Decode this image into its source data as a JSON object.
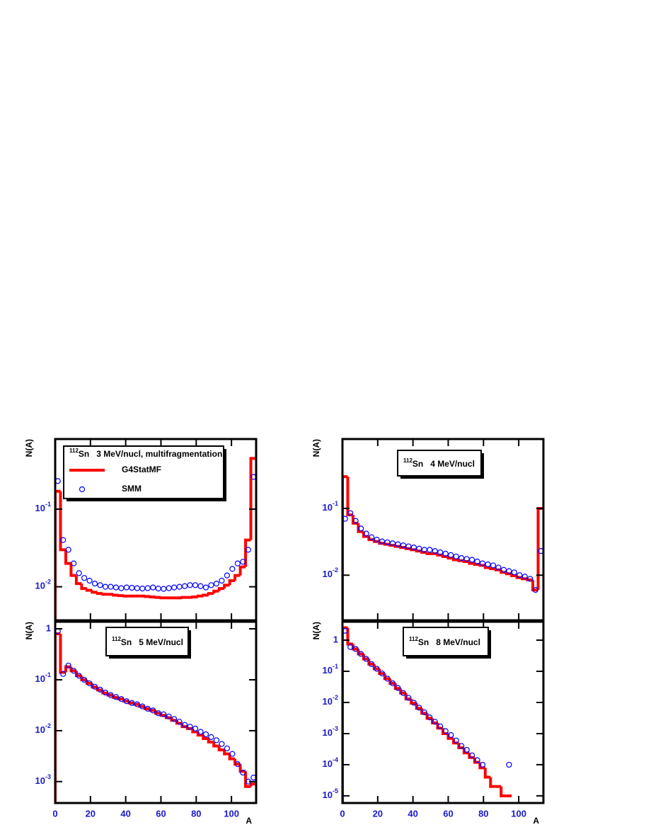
{
  "chart_data": [
    {
      "type": "histogram",
      "title": {
        "mass": "112",
        "element": "Sn",
        "text": "   3 MeV/nucl, multifragmentation"
      },
      "ylabel": "N(A)",
      "xlim": [
        0,
        114
      ],
      "xticks": [
        0,
        20,
        40,
        60,
        80,
        100
      ],
      "log_y": true,
      "ylim": [
        0.0037,
        0.8
      ],
      "yticks": [
        {
          "value": 0.1,
          "base": "10",
          "exponent": "-1"
        },
        {
          "value": 0.01,
          "base": "10",
          "exponent": "-2"
        }
      ],
      "bins": [
        0,
        3,
        6,
        9,
        12,
        15,
        18,
        21,
        24,
        27,
        30,
        33,
        36,
        39,
        42,
        45,
        48,
        51,
        54,
        57,
        60,
        63,
        66,
        69,
        72,
        75,
        78,
        81,
        84,
        87,
        90,
        93,
        96,
        99,
        102,
        105,
        108,
        111,
        114
      ],
      "series": [
        {
          "name": "G4StatMF",
          "style": "step",
          "color": "#ff0000",
          "values": [
            0.17,
            0.03,
            0.02,
            0.014,
            0.011,
            0.0095,
            0.009,
            0.0085,
            0.0082,
            0.008,
            0.008,
            0.0078,
            0.0077,
            0.0076,
            0.0076,
            0.0076,
            0.0076,
            0.0075,
            0.0074,
            0.0073,
            0.0072,
            0.0072,
            0.0072,
            0.0072,
            0.0073,
            0.0073,
            0.0074,
            0.0076,
            0.0078,
            0.0082,
            0.0088,
            0.0095,
            0.0105,
            0.012,
            0.014,
            0.018,
            0.04,
            0.45
          ]
        },
        {
          "name": "SMM",
          "style": "marker",
          "color": "#0000ff",
          "x": [
            1.5,
            4.5,
            7.5,
            10.5,
            13.5,
            16.5,
            19.5,
            22.5,
            25.5,
            28.5,
            31.5,
            34.5,
            37.5,
            40.5,
            43.5,
            46.5,
            49.5,
            52.5,
            55.5,
            58.5,
            61.5,
            64.5,
            67.5,
            70.5,
            73.5,
            76.5,
            79.5,
            82.5,
            85.5,
            88.5,
            91.5,
            94.5,
            97.5,
            100.5,
            103.5,
            106.5,
            109.5,
            112.5
          ],
          "values": [
            0.23,
            0.04,
            0.03,
            0.02,
            0.015,
            0.013,
            0.012,
            0.011,
            0.0105,
            0.01,
            0.01,
            0.0098,
            0.0096,
            0.0098,
            0.0097,
            0.0096,
            0.0095,
            0.0096,
            0.0098,
            0.0095,
            0.0094,
            0.0096,
            0.0098,
            0.01,
            0.0102,
            0.0105,
            0.0105,
            0.0102,
            0.0098,
            0.0105,
            0.011,
            0.012,
            0.014,
            0.017,
            0.02,
            0.021,
            0.03,
            0.26
          ]
        }
      ]
    },
    {
      "type": "histogram",
      "title": {
        "mass": "112",
        "element": "Sn",
        "text": "   4 MeV/nucl"
      },
      "ylabel": "N(A)",
      "xlim": [
        0,
        114
      ],
      "xticks": [
        0,
        20,
        40,
        60,
        80,
        100
      ],
      "log_y": true,
      "ylim": [
        0.0021,
        1.1
      ],
      "yticks": [
        {
          "value": 0.1,
          "base": "10",
          "exponent": "-1"
        },
        {
          "value": 0.01,
          "base": "10",
          "exponent": "-2"
        }
      ],
      "bins": [
        0,
        3,
        6,
        9,
        12,
        15,
        18,
        21,
        24,
        27,
        30,
        33,
        36,
        39,
        42,
        45,
        48,
        51,
        54,
        57,
        60,
        63,
        66,
        69,
        72,
        75,
        78,
        81,
        84,
        87,
        90,
        93,
        96,
        99,
        102,
        105,
        108,
        111,
        114
      ],
      "series": [
        {
          "style": "step",
          "color": "#ff0000",
          "values": [
            0.3,
            0.08,
            0.06,
            0.045,
            0.038,
            0.034,
            0.032,
            0.03,
            0.029,
            0.028,
            0.027,
            0.026,
            0.025,
            0.024,
            0.023,
            0.022,
            0.021,
            0.021,
            0.02,
            0.019,
            0.018,
            0.017,
            0.0165,
            0.016,
            0.015,
            0.0145,
            0.014,
            0.013,
            0.0125,
            0.012,
            0.011,
            0.0105,
            0.0098,
            0.0092,
            0.0088,
            0.0085,
            0.006,
            0.1
          ]
        },
        {
          "style": "marker",
          "color": "#0000ff",
          "x": [
            1.5,
            4.5,
            7.5,
            10.5,
            13.5,
            16.5,
            19.5,
            22.5,
            25.5,
            28.5,
            31.5,
            34.5,
            37.5,
            40.5,
            43.5,
            46.5,
            49.5,
            52.5,
            55.5,
            58.5,
            61.5,
            64.5,
            67.5,
            70.5,
            73.5,
            76.5,
            79.5,
            82.5,
            85.5,
            88.5,
            91.5,
            94.5,
            97.5,
            100.5,
            103.5,
            106.5,
            109.5,
            112.5
          ],
          "values": [
            0.07,
            0.085,
            0.065,
            0.05,
            0.042,
            0.037,
            0.034,
            0.032,
            0.031,
            0.03,
            0.029,
            0.028,
            0.027,
            0.026,
            0.025,
            0.024,
            0.024,
            0.023,
            0.022,
            0.021,
            0.02,
            0.019,
            0.018,
            0.0175,
            0.017,
            0.016,
            0.015,
            0.0145,
            0.014,
            0.013,
            0.012,
            0.0115,
            0.011,
            0.01,
            0.0095,
            0.0088,
            0.006,
            0.023
          ]
        }
      ]
    },
    {
      "type": "histogram",
      "title": {
        "mass": "112",
        "element": "Sn",
        "text": "   5 MeV/nucl"
      },
      "ylabel": "N(A)",
      "xlabel": "A",
      "xlim": [
        0,
        114
      ],
      "xticks": [
        0,
        20,
        40,
        60,
        80,
        100
      ],
      "log_y": true,
      "ylim": [
        0.00038,
        1.38
      ],
      "yticks": [
        1,
        {
          "value": 0.1,
          "base": "10",
          "exponent": "-1"
        },
        {
          "value": 0.01,
          "base": "10",
          "exponent": "-2"
        },
        {
          "value": 0.001,
          "base": "10",
          "exponent": "-3"
        }
      ],
      "bins": [
        0,
        3,
        6,
        9,
        12,
        15,
        18,
        21,
        24,
        27,
        30,
        33,
        36,
        39,
        42,
        45,
        48,
        51,
        54,
        57,
        60,
        63,
        66,
        69,
        72,
        75,
        78,
        81,
        84,
        87,
        90,
        93,
        96,
        99,
        102,
        105,
        108,
        111,
        114
      ],
      "series": [
        {
          "style": "step",
          "color": "#ff0000",
          "values": [
            0.8,
            0.14,
            0.18,
            0.15,
            0.12,
            0.1,
            0.085,
            0.072,
            0.063,
            0.055,
            0.05,
            0.045,
            0.042,
            0.038,
            0.035,
            0.033,
            0.03,
            0.027,
            0.025,
            0.022,
            0.02,
            0.018,
            0.016,
            0.014,
            0.012,
            0.011,
            0.0095,
            0.0082,
            0.007,
            0.006,
            0.005,
            0.0042,
            0.0035,
            0.0028,
            0.0022,
            0.0016,
            0.0008,
            0.0009
          ]
        },
        {
          "style": "marker",
          "color": "#0000ff",
          "x": [
            1.5,
            4.5,
            7.5,
            10.5,
            13.5,
            16.5,
            19.5,
            22.5,
            25.5,
            28.5,
            31.5,
            34.5,
            37.5,
            40.5,
            43.5,
            46.5,
            49.5,
            52.5,
            55.5,
            58.5,
            61.5,
            64.5,
            67.5,
            70.5,
            73.5,
            76.5,
            79.5,
            82.5,
            85.5,
            88.5,
            91.5,
            94.5,
            97.5,
            100.5,
            103.5,
            106.5,
            109.5,
            112.5
          ],
          "values": [
            0.9,
            0.13,
            0.19,
            0.15,
            0.12,
            0.1,
            0.085,
            0.073,
            0.064,
            0.056,
            0.05,
            0.046,
            0.042,
            0.038,
            0.035,
            0.033,
            0.03,
            0.027,
            0.025,
            0.022,
            0.021,
            0.019,
            0.017,
            0.015,
            0.013,
            0.012,
            0.011,
            0.0095,
            0.0085,
            0.0075,
            0.0065,
            0.0055,
            0.0045,
            0.0035,
            0.0022,
            0.0015,
            0.001,
            0.0012
          ]
        }
      ]
    },
    {
      "type": "histogram",
      "title": {
        "mass": "112",
        "element": "Sn",
        "text": "   8 MeV/nucl"
      },
      "ylabel": "N(A)",
      "xlabel": "A",
      "xlim": [
        0,
        114
      ],
      "xticks": [
        0,
        20,
        40,
        60,
        80,
        100
      ],
      "log_y": true,
      "ylim": [
        5.9e-06,
        3.9
      ],
      "yticks": [
        1,
        {
          "value": 0.1,
          "base": "10",
          "exponent": "-1"
        },
        {
          "value": 0.01,
          "base": "10",
          "exponent": "-2"
        },
        {
          "value": 0.001,
          "base": "10",
          "exponent": "-3"
        },
        {
          "value": 0.0001,
          "base": "10",
          "exponent": "-4"
        },
        {
          "value": 1e-05,
          "base": "10",
          "exponent": "-5"
        }
      ],
      "bins": [
        0,
        3,
        6,
        9,
        12,
        15,
        18,
        21,
        24,
        27,
        30,
        33,
        36,
        39,
        42,
        45,
        48,
        51,
        54,
        57,
        60,
        63,
        66,
        69,
        72,
        75,
        78,
        81,
        84,
        87,
        90,
        93,
        96,
        99,
        102,
        105,
        108,
        111,
        114
      ],
      "series": [
        {
          "style": "step",
          "color": "#ff0000",
          "values": [
            2.5,
            0.75,
            0.52,
            0.36,
            0.25,
            0.17,
            0.12,
            0.085,
            0.058,
            0.041,
            0.028,
            0.02,
            0.013,
            0.0095,
            0.0065,
            0.0045,
            0.0031,
            0.0022,
            0.0015,
            0.001,
            0.0007,
            0.0005,
            0.00035,
            0.00024,
            0.00017,
            0.00012,
            8e-05,
            4e-05,
            2e-05,
            2e-05,
            1e-05,
            1e-05,
            null,
            null,
            null,
            null,
            null,
            null
          ]
        },
        {
          "style": "marker",
          "color": "#0000ff",
          "x": [
            1.5,
            4.5,
            7.5,
            10.5,
            13.5,
            16.5,
            19.5,
            22.5,
            25.5,
            28.5,
            31.5,
            34.5,
            37.5,
            40.5,
            43.5,
            46.5,
            49.5,
            52.5,
            55.5,
            58.5,
            61.5,
            64.5,
            67.5,
            70.5,
            73.5,
            76.5,
            79.5,
            82.5,
            85.5,
            88.5,
            91.5,
            94.5,
            97.5,
            100.5,
            103.5,
            106.5,
            109.5,
            112.5
          ],
          "values": [
            2.0,
            0.6,
            0.52,
            0.36,
            0.25,
            0.17,
            0.12,
            0.085,
            0.058,
            0.041,
            0.029,
            0.02,
            0.014,
            0.0098,
            0.0068,
            0.0048,
            0.0033,
            0.0024,
            0.0017,
            0.0012,
            0.0009,
            0.0006,
            0.0004,
            0.0003,
            0.0002,
            0.00014,
            0.0001,
            null,
            null,
            null,
            null,
            0.0001,
            null,
            null,
            null,
            null,
            null,
            null
          ]
        }
      ]
    }
  ]
}
